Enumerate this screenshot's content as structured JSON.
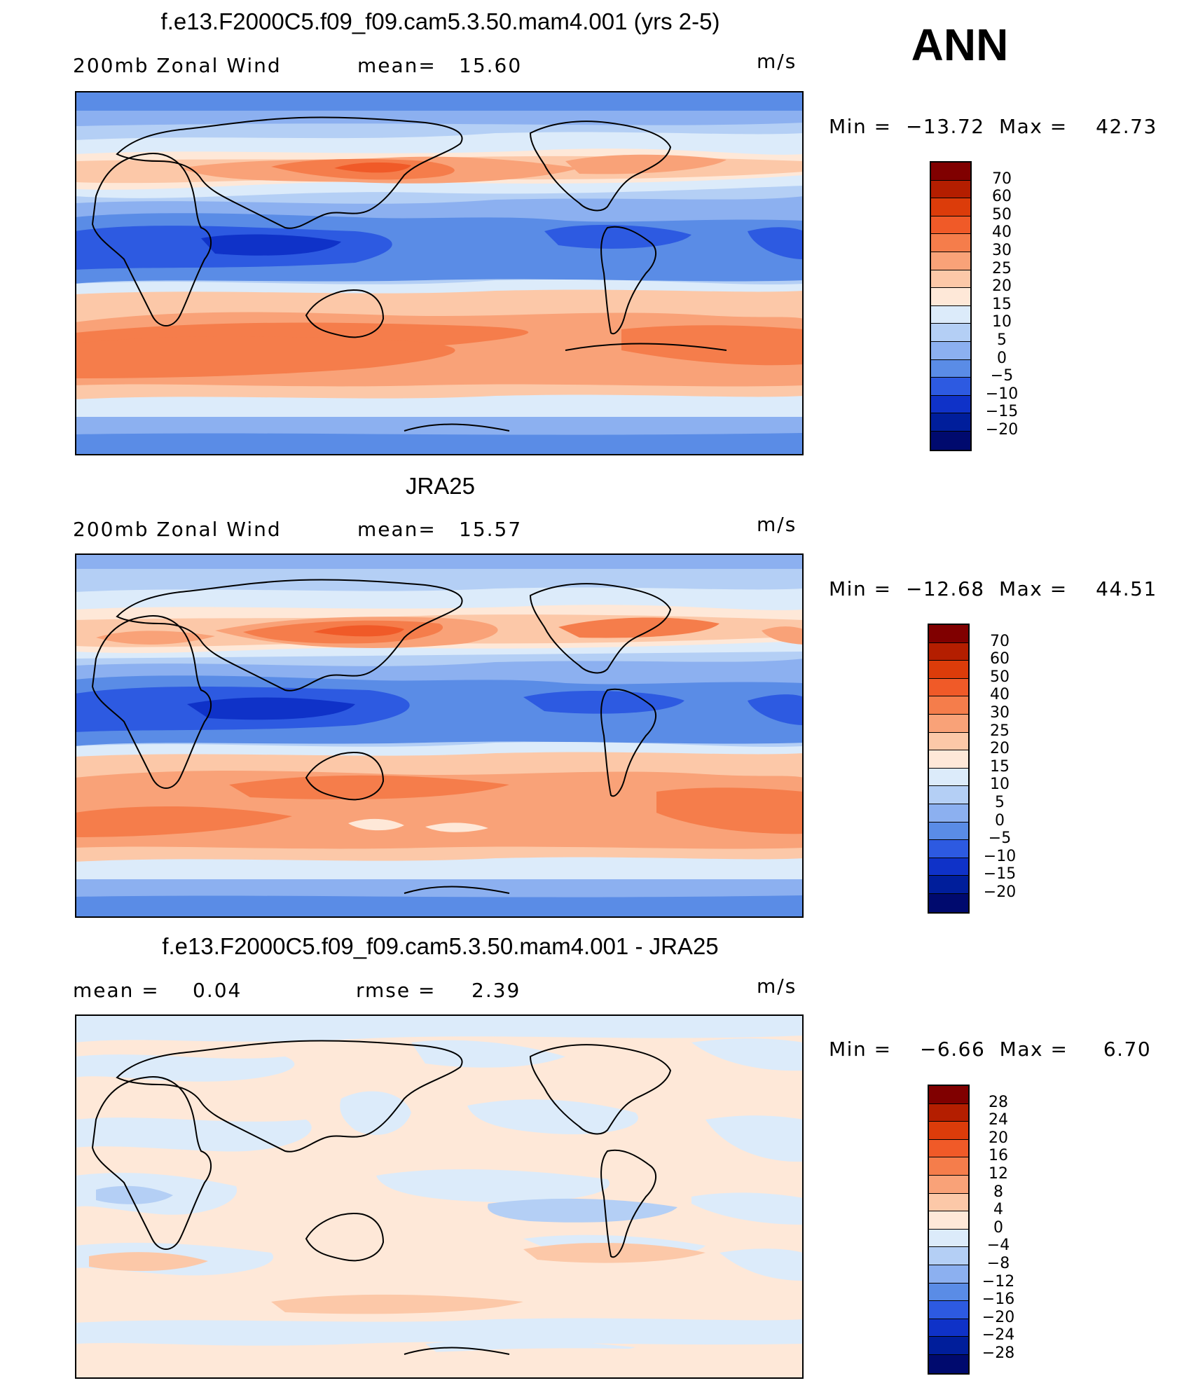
{
  "season": "ANN",
  "units": "m/s",
  "panels": [
    {
      "title": "f.e13.F2000C5.f09_f09.cam5.3.50.mam4.001 (yrs 2-5)",
      "left_label": "200mb Zonal Wind",
      "mid_label": "mean=",
      "mid_value": "15.60",
      "unit": "m/s",
      "min_label": "Min =",
      "min_value": "−13.72",
      "max_label": "Max =",
      "max_value": "42.73",
      "levels": [
        "70",
        "60",
        "50",
        "40",
        "30",
        "25",
        "20",
        "15",
        "10",
        "5",
        "0",
        "−5",
        "−10",
        "−15",
        "−20"
      ],
      "colors": [
        "#800000",
        "#b41e00",
        "#dc3c0a",
        "#f05a28",
        "#f57d4b",
        "#f9a278",
        "#fcc8a8",
        "#fee8d8",
        "#dcebfa",
        "#b4cff5",
        "#8cb0f0",
        "#5a8ce6",
        "#2d5ae1",
        "#0f32c8",
        "#001e9b",
        "#000a6e"
      ]
    },
    {
      "title": "JRA25",
      "left_label": "200mb Zonal Wind",
      "mid_label": "mean=",
      "mid_value": "15.57",
      "unit": "m/s",
      "min_label": "Min =",
      "min_value": "−12.68",
      "max_label": "Max =",
      "max_value": "44.51",
      "levels": [
        "70",
        "60",
        "50",
        "40",
        "30",
        "25",
        "20",
        "15",
        "10",
        "5",
        "0",
        "−5",
        "−10",
        "−15",
        "−20"
      ],
      "colors": [
        "#800000",
        "#b41e00",
        "#dc3c0a",
        "#f05a28",
        "#f57d4b",
        "#f9a278",
        "#fcc8a8",
        "#fee8d8",
        "#dcebfa",
        "#b4cff5",
        "#8cb0f0",
        "#5a8ce6",
        "#2d5ae1",
        "#0f32c8",
        "#001e9b",
        "#000a6e"
      ]
    },
    {
      "title": "f.e13.F2000C5.f09_f09.cam5.3.50.mam4.001 - JRA25",
      "left_label": "mean =",
      "left_value": "0.04",
      "mid_label": "rmse =",
      "mid_value": "2.39",
      "unit": "m/s",
      "min_label": "Min =",
      "min_value": "−6.66",
      "max_label": "Max =",
      "max_value": "6.70",
      "levels": [
        "28",
        "24",
        "20",
        "16",
        "12",
        "8",
        "4",
        "0",
        "−4",
        "−8",
        "−12",
        "−16",
        "−20",
        "−24",
        "−28"
      ],
      "colors": [
        "#800000",
        "#b41e00",
        "#dc3c0a",
        "#f05a28",
        "#f57d4b",
        "#f9a278",
        "#fcc8a8",
        "#fee8d8",
        "#dcebfa",
        "#b4cff5",
        "#8cb0f0",
        "#5a8ce6",
        "#2d5ae1",
        "#0f32c8",
        "#001e9b",
        "#000a6e"
      ]
    }
  ]
}
